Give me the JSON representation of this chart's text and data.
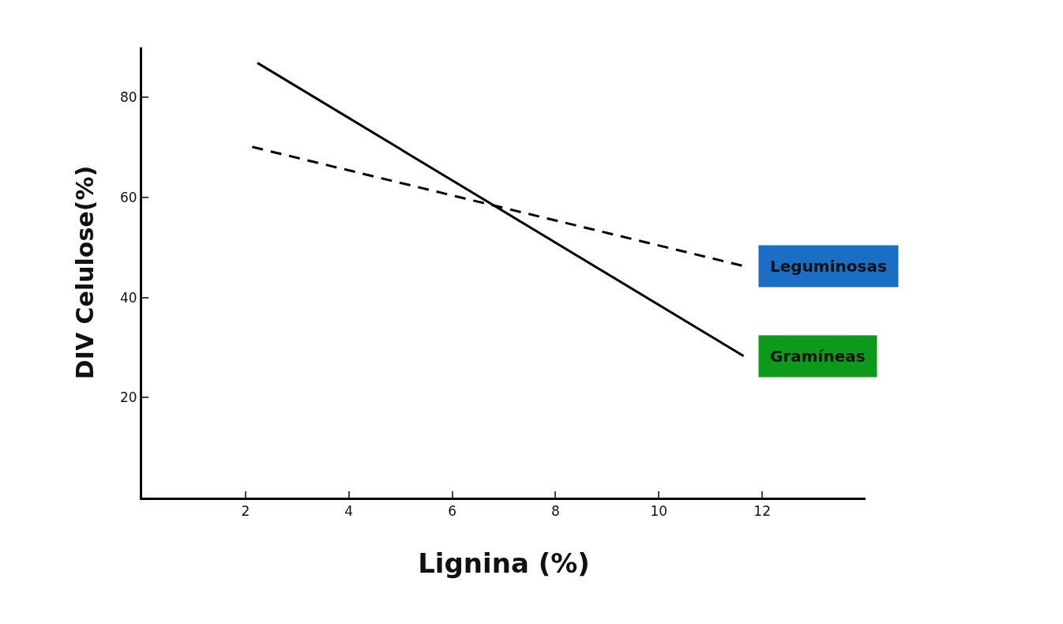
{
  "chart_data": {
    "type": "line",
    "xlabel": "Lignina (%)",
    "ylabel": "DIV Celulose(%)",
    "xlim": [
      0,
      14
    ],
    "ylim": [
      0,
      90
    ],
    "xticks": [
      2,
      4,
      6,
      8,
      10,
      12
    ],
    "yticks": [
      20,
      40,
      60,
      80
    ],
    "legend": false,
    "marker": "none",
    "series": [
      {
        "name": "Leguminosas",
        "color": "#000000",
        "line_style": "dashed",
        "x": [
          2.13,
          11.64
        ],
        "values": [
          70.1,
          46.3
        ]
      },
      {
        "name": "Gramíneas",
        "color": "#000000",
        "line_style": "solid",
        "x": [
          2.23,
          11.64
        ],
        "values": [
          86.9,
          28.3
        ]
      }
    ]
  }
}
